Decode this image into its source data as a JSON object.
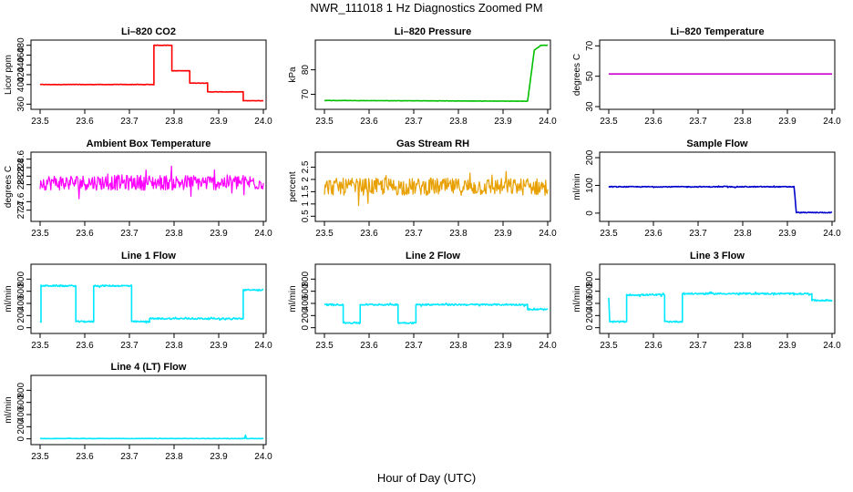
{
  "figure": {
    "title": "NWR_111018  1 Hz Diagnostics Zoomed PM",
    "xlabel": "Hour of Day (UTC)"
  },
  "chart_data": [
    {
      "type": "line",
      "title": "Li–820 CO2",
      "ylabel": "Licor ppm",
      "xlim": [
        23.5,
        24.0
      ],
      "ylim": [
        355,
        485
      ],
      "xticks": [
        "23.5",
        "23.6",
        "23.7",
        "23.8",
        "23.9",
        "24.0"
      ],
      "yticks": [
        360,
        400,
        420,
        440,
        460,
        480
      ],
      "color": "#ff0000",
      "noise": 0.4,
      "series": [
        {
          "x": [
            23.5,
            23.755,
            23.755,
            23.795,
            23.795,
            23.835,
            23.835,
            23.875,
            23.875,
            23.955,
            23.955,
            24.0
          ],
          "y": [
            400,
            400,
            480,
            480,
            428,
            428,
            403,
            403,
            385,
            385,
            367,
            367
          ]
        }
      ]
    },
    {
      "type": "line",
      "title": "Li–820 Pressure",
      "ylabel": "kPa",
      "xlim": [
        23.5,
        24.0
      ],
      "ylim": [
        65,
        91
      ],
      "xticks": [
        "23.5",
        "23.6",
        "23.7",
        "23.8",
        "23.9",
        "24.0"
      ],
      "yticks": [
        70,
        80
      ],
      "color": "#00c000",
      "noise": 0.05,
      "series": [
        {
          "x": [
            23.5,
            23.955,
            23.97,
            23.985,
            24.0
          ],
          "y": [
            67.5,
            67.2,
            88,
            90,
            90
          ]
        }
      ]
    },
    {
      "type": "line",
      "title": "Li–820 Temperature",
      "ylabel": "degrees C",
      "xlim": [
        23.5,
        24.0
      ],
      "ylim": [
        30,
        72
      ],
      "xticks": [
        "23.5",
        "23.6",
        "23.7",
        "23.8",
        "23.9",
        "24.0"
      ],
      "yticks": [
        30,
        50,
        70
      ],
      "color": "#cc00cc",
      "noise": 0,
      "series": [
        {
          "x": [
            23.5,
            24.0
          ],
          "y": [
            51.5,
            51.5
          ]
        }
      ]
    },
    {
      "type": "line",
      "title": "Ambient Box Temperature",
      "ylabel": "degrees C",
      "xlim": [
        23.5,
        24.0
      ],
      "ylim": [
        27.2,
        28.7
      ],
      "xticks": [
        "23.5",
        "23.6",
        "23.7",
        "23.8",
        "23.9",
        "24.0"
      ],
      "yticks": [
        27.4,
        27.6,
        28.0,
        28.2,
        28.4,
        28.6
      ],
      "color": "#ff00ff",
      "noise": 0.18,
      "series": [
        {
          "x": [
            23.5,
            24.0
          ],
          "y": [
            28.05,
            28.05
          ]
        }
      ]
    },
    {
      "type": "line",
      "title": "Gas Stream RH",
      "ylabel": "percent",
      "xlim": [
        23.5,
        24.0
      ],
      "ylim": [
        0.4,
        3.0
      ],
      "xticks": [
        "23.5",
        "23.6",
        "23.7",
        "23.8",
        "23.9",
        "24.0"
      ],
      "yticks": [
        0.5,
        1.0,
        1.5,
        2.0,
        2.5
      ],
      "color": "#e8a000",
      "noise": 0.35,
      "series": [
        {
          "x": [
            23.5,
            24.0
          ],
          "y": [
            1.7,
            1.7
          ]
        }
      ]
    },
    {
      "type": "line",
      "title": "Sample Flow",
      "ylabel": "ml/min",
      "xlim": [
        23.5,
        24.0
      ],
      "ylim": [
        -20,
        210
      ],
      "xticks": [
        "23.5",
        "23.6",
        "23.7",
        "23.8",
        "23.9",
        "24.0"
      ],
      "yticks": [
        0,
        100,
        200
      ],
      "color": "#0000cc",
      "noise": 1.5,
      "series": [
        {
          "x": [
            23.5,
            23.915,
            23.92,
            24.0
          ],
          "y": [
            95,
            95,
            2,
            2
          ]
        }
      ]
    },
    {
      "type": "line",
      "title": "Line 1 Flow",
      "ylabel": "ml/min",
      "xlim": [
        23.5,
        24.0
      ],
      "ylim": [
        -50,
        1000
      ],
      "xticks": [
        "23.5",
        "23.6",
        "23.7",
        "23.8",
        "23.9",
        "24.0"
      ],
      "yticks": [
        0,
        200,
        400,
        600,
        800
      ],
      "color": "#00e8ff",
      "noise": 12,
      "series": [
        {
          "x": [
            23.5,
            23.502,
            23.502,
            23.58,
            23.58,
            23.62,
            23.62,
            23.705,
            23.705,
            23.745,
            23.745,
            23.955,
            23.955,
            24.0
          ],
          "y": [
            100,
            100,
            690,
            690,
            100,
            100,
            690,
            690,
            100,
            100,
            150,
            150,
            620,
            620
          ]
        }
      ]
    },
    {
      "type": "line",
      "title": "Line 2 Flow",
      "ylabel": "ml/min",
      "xlim": [
        23.5,
        24.0
      ],
      "ylim": [
        -50,
        1000
      ],
      "xticks": [
        "23.5",
        "23.6",
        "23.7",
        "23.8",
        "23.9",
        "24.0"
      ],
      "yticks": [
        0,
        200,
        400,
        600,
        800
      ],
      "color": "#00e8ff",
      "noise": 12,
      "series": [
        {
          "x": [
            23.5,
            23.542,
            23.542,
            23.58,
            23.58,
            23.665,
            23.665,
            23.705,
            23.705,
            23.955,
            23.955,
            24.0
          ],
          "y": [
            380,
            380,
            80,
            80,
            380,
            380,
            80,
            80,
            380,
            380,
            300,
            300
          ]
        }
      ]
    },
    {
      "type": "line",
      "title": "Line 3 Flow",
      "ylabel": "ml/min",
      "xlim": [
        23.5,
        24.0
      ],
      "ylim": [
        -50,
        1000
      ],
      "xticks": [
        "23.5",
        "23.6",
        "23.7",
        "23.8",
        "23.9",
        "24.0"
      ],
      "yticks": [
        0,
        200,
        400,
        600,
        800
      ],
      "color": "#00e8ff",
      "noise": 12,
      "series": [
        {
          "x": [
            23.5,
            23.502,
            23.502,
            23.54,
            23.54,
            23.625,
            23.625,
            23.665,
            23.665,
            23.955,
            23.955,
            24.0
          ],
          "y": [
            500,
            100,
            100,
            100,
            540,
            540,
            100,
            100,
            560,
            560,
            450,
            450
          ]
        }
      ]
    },
    {
      "type": "line",
      "title": "Line 4 (LT) Flow",
      "ylabel": "ml/min",
      "xlim": [
        23.5,
        24.0
      ],
      "ylim": [
        -50,
        1000
      ],
      "xticks": [
        "23.5",
        "23.6",
        "23.7",
        "23.8",
        "23.9",
        "24.0"
      ],
      "yticks": [
        0,
        200,
        400,
        600,
        800
      ],
      "color": "#00e8ff",
      "noise": 3,
      "series": [
        {
          "x": [
            23.5,
            23.958,
            23.96,
            23.962,
            24.0
          ],
          "y": [
            5,
            5,
            60,
            5,
            5
          ]
        }
      ]
    }
  ]
}
